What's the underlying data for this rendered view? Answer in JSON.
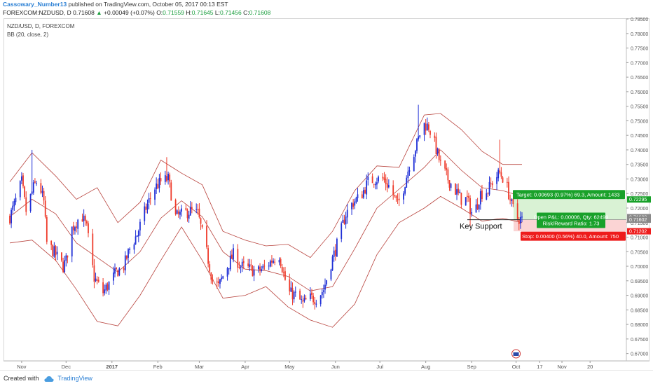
{
  "header": {
    "author": "Cassowary_Number13",
    "published_text": " published on TradingView.com, October 05, 2017 00:13 EST",
    "symbol": "FOREXCOM:NZDUSD, D",
    "last": "0.71608",
    "change_arrow": "▲",
    "change": "+0.00049 (+0.07%)",
    "open_label": "O:",
    "open": "0.71559",
    "high_label": "H:",
    "high": "0.71645",
    "low_label": "L:",
    "low": "0.71456",
    "close_label": "C:",
    "close": "0.71608"
  },
  "legend": {
    "symbol": "NZD/USD, D, FOREXCOM",
    "indicator": "BB (20, close, 2)"
  },
  "footer": {
    "created_with": "Created with",
    "brand": "TradingView"
  },
  "colors": {
    "up": "#1f2fd6",
    "down": "#ee3b2b",
    "band": "#b8433d",
    "profit_fill": "#d9f2d4",
    "loss_fill": "#fbd4d4",
    "target_badge": "#19a12a",
    "stop_badge": "#ee1c1c"
  },
  "chart_data": {
    "type": "candlestick",
    "symbol": "NZD/USD",
    "timeframe": "D",
    "y_axis": {
      "range": [
        0.6675,
        0.7855
      ],
      "tick_labels": [
        "0.78500",
        "0.78000",
        "0.77500",
        "0.77000",
        "0.76500",
        "0.76000",
        "0.75500",
        "0.75000",
        "0.74500",
        "0.74000",
        "0.73500",
        "0.73000",
        "0.72500",
        "0.72000",
        "0.71500",
        "0.71000",
        "0.70500",
        "0.70000",
        "0.69500",
        "0.69000",
        "0.68500",
        "0.68000",
        "0.67500",
        "0.67000"
      ]
    },
    "x_axis": {
      "tick_labels": [
        "Nov",
        "Dec",
        "2017",
        "Feb",
        "Mar",
        "Apr",
        "May",
        "Jun",
        "Jul",
        "Aug",
        "Sep",
        "Oct",
        "17",
        "Nov",
        "20"
      ]
    },
    "price_labels": [
      {
        "text": "0.72295",
        "price": 0.72295,
        "kind": "target"
      },
      {
        "text": "0.71688",
        "price": 0.71688,
        "kind": "neutral"
      },
      {
        "text": "0.71602",
        "price": 0.71602,
        "kind": "neutral"
      },
      {
        "text": "0.71202",
        "price": 0.71202,
        "kind": "stop"
      }
    ],
    "position": {
      "target_text": "Target: 0.00693 (0.97%) 69.3, Amount: 1433",
      "open_pnl_text": "Open P&L: 0.00006, Qty: 62499",
      "risk_reward_text": "Risk/Reward Ratio: 1.73",
      "stop_text": "Stop: 0.00400 (0.56%) 40.0, Amount: 750",
      "entry": 0.71602,
      "target": 0.72295,
      "stop": 0.71202
    },
    "annotation": {
      "text": "Key Support",
      "price": 0.716
    },
    "anchors": [
      [
        "2016-10-24",
        0.717
      ],
      [
        "2016-10-27",
        0.721
      ],
      [
        "2016-11-01",
        0.729
      ],
      [
        "2016-11-04",
        0.719
      ],
      [
        "2016-11-09",
        0.727
      ],
      [
        "2016-11-12",
        0.73
      ],
      [
        "2016-11-16",
        0.722
      ],
      [
        "2016-11-18",
        0.708
      ],
      [
        "2016-11-24",
        0.704
      ],
      [
        "2016-11-29",
        0.7
      ],
      [
        "2016-12-01",
        0.702
      ],
      [
        "2016-12-05",
        0.713
      ],
      [
        "2016-12-09",
        0.716
      ],
      [
        "2016-12-12",
        0.717
      ],
      [
        "2016-12-15",
        0.713
      ],
      [
        "2016-12-20",
        0.696
      ],
      [
        "2016-12-26",
        0.691
      ],
      [
        "2016-12-30",
        0.694
      ],
      [
        "2017-01-04",
        0.698
      ],
      [
        "2017-01-09",
        0.7
      ],
      [
        "2017-01-13",
        0.706
      ],
      [
        "2017-01-18",
        0.711
      ],
      [
        "2017-01-24",
        0.72
      ],
      [
        "2017-01-30",
        0.727
      ],
      [
        "2017-02-03",
        0.729
      ],
      [
        "2017-02-08",
        0.73
      ],
      [
        "2017-02-13",
        0.717
      ],
      [
        "2017-02-18",
        0.718
      ],
      [
        "2017-02-23",
        0.719
      ],
      [
        "2017-02-28",
        0.718
      ],
      [
        "2017-03-05",
        0.707
      ],
      [
        "2017-03-10",
        0.695
      ],
      [
        "2017-03-14",
        0.693
      ],
      [
        "2017-03-19",
        0.699
      ],
      [
        "2017-03-24",
        0.704
      ],
      [
        "2017-03-29",
        0.7
      ],
      [
        "2017-04-04",
        0.699
      ],
      [
        "2017-04-09",
        0.698
      ],
      [
        "2017-04-14",
        0.6995
      ],
      [
        "2017-04-19",
        0.702
      ],
      [
        "2017-04-24",
        0.704
      ],
      [
        "2017-04-30",
        0.691
      ],
      [
        "2017-05-05",
        0.69
      ],
      [
        "2017-05-10",
        0.687
      ],
      [
        "2017-05-14",
        0.689
      ],
      [
        "2017-05-19",
        0.689
      ],
      [
        "2017-05-24",
        0.692
      ],
      [
        "2017-05-29",
        0.701
      ],
      [
        "2017-06-03",
        0.709
      ],
      [
        "2017-06-08",
        0.718
      ],
      [
        "2017-06-13",
        0.722
      ],
      [
        "2017-06-18",
        0.724
      ],
      [
        "2017-06-23",
        0.729
      ],
      [
        "2017-06-28",
        0.73
      ],
      [
        "2017-07-03",
        0.73
      ],
      [
        "2017-07-08",
        0.727
      ],
      [
        "2017-07-13",
        0.721
      ],
      [
        "2017-07-17",
        0.727
      ],
      [
        "2017-07-21",
        0.735
      ],
      [
        "2017-07-26",
        0.742
      ],
      [
        "2017-07-30",
        0.749
      ],
      [
        "2017-08-03",
        0.748
      ],
      [
        "2017-08-07",
        0.742
      ],
      [
        "2017-08-11",
        0.735
      ],
      [
        "2017-08-16",
        0.73
      ],
      [
        "2017-08-21",
        0.726
      ],
      [
        "2017-08-25",
        0.723
      ],
      [
        "2017-08-29",
        0.723
      ],
      [
        "2017-09-02",
        0.717
      ],
      [
        "2017-09-07",
        0.725
      ],
      [
        "2017-09-12",
        0.726
      ],
      [
        "2017-09-16",
        0.73
      ],
      [
        "2017-09-20",
        0.732
      ],
      [
        "2017-09-24",
        0.729
      ],
      [
        "2017-09-28",
        0.721
      ],
      [
        "2017-10-02",
        0.7165
      ],
      [
        "2017-10-05",
        0.716
      ]
    ],
    "bollinger_bands": {
      "period": 20,
      "source": "close",
      "stddev": 2,
      "upper": [
        [
          "2016-10-24",
          0.729
        ],
        [
          "2016-11-08",
          0.739
        ],
        [
          "2016-11-24",
          0.731
        ],
        [
          "2016-12-08",
          0.723
        ],
        [
          "2016-12-22",
          0.727
        ],
        [
          "2017-01-05",
          0.715
        ],
        [
          "2017-01-20",
          0.722
        ],
        [
          "2017-02-03",
          0.7365
        ],
        [
          "2017-02-17",
          0.732
        ],
        [
          "2017-03-03",
          0.728
        ],
        [
          "2017-03-17",
          0.712
        ],
        [
          "2017-04-01",
          0.709
        ],
        [
          "2017-04-15",
          0.707
        ],
        [
          "2017-04-30",
          0.7075
        ],
        [
          "2017-05-15",
          0.703
        ],
        [
          "2017-05-30",
          0.712
        ],
        [
          "2017-06-14",
          0.726
        ],
        [
          "2017-06-29",
          0.7345
        ],
        [
          "2017-07-14",
          0.734
        ],
        [
          "2017-07-31",
          0.752
        ],
        [
          "2017-08-11",
          0.7525
        ],
        [
          "2017-08-25",
          0.747
        ],
        [
          "2017-09-08",
          0.7395
        ],
        [
          "2017-09-22",
          0.735
        ],
        [
          "2017-10-05",
          0.735
        ]
      ],
      "middle": [
        [
          "2016-10-24",
          0.717
        ],
        [
          "2016-11-08",
          0.723
        ],
        [
          "2016-11-24",
          0.718
        ],
        [
          "2016-12-08",
          0.708
        ],
        [
          "2016-12-22",
          0.703
        ],
        [
          "2017-01-05",
          0.698
        ],
        [
          "2017-01-20",
          0.705
        ],
        [
          "2017-02-03",
          0.7165
        ],
        [
          "2017-02-17",
          0.7225
        ],
        [
          "2017-03-03",
          0.717
        ],
        [
          "2017-03-17",
          0.705
        ],
        [
          "2017-04-01",
          0.699
        ],
        [
          "2017-04-15",
          0.6985
        ],
        [
          "2017-04-30",
          0.6965
        ],
        [
          "2017-05-15",
          0.6915
        ],
        [
          "2017-05-30",
          0.693
        ],
        [
          "2017-06-14",
          0.706
        ],
        [
          "2017-06-29",
          0.72
        ],
        [
          "2017-07-14",
          0.7265
        ],
        [
          "2017-07-31",
          0.734
        ],
        [
          "2017-08-11",
          0.74
        ],
        [
          "2017-08-25",
          0.733
        ],
        [
          "2017-09-08",
          0.727
        ],
        [
          "2017-09-22",
          0.726
        ],
        [
          "2017-10-05",
          0.724
        ]
      ],
      "lower": [
        [
          "2016-10-24",
          0.708
        ],
        [
          "2016-11-08",
          0.709
        ],
        [
          "2016-11-24",
          0.702
        ],
        [
          "2016-12-08",
          0.692
        ],
        [
          "2016-12-22",
          0.681
        ],
        [
          "2017-01-05",
          0.6795
        ],
        [
          "2017-01-20",
          0.69
        ],
        [
          "2017-02-03",
          0.702
        ],
        [
          "2017-02-17",
          0.7135
        ],
        [
          "2017-03-03",
          0.702
        ],
        [
          "2017-03-17",
          0.689
        ],
        [
          "2017-04-01",
          0.69
        ],
        [
          "2017-04-15",
          0.693
        ],
        [
          "2017-04-30",
          0.686
        ],
        [
          "2017-05-15",
          0.6815
        ],
        [
          "2017-05-30",
          0.679
        ],
        [
          "2017-06-14",
          0.687
        ],
        [
          "2017-06-29",
          0.704
        ],
        [
          "2017-07-14",
          0.715
        ],
        [
          "2017-07-31",
          0.72
        ],
        [
          "2017-08-11",
          0.724
        ],
        [
          "2017-08-25",
          0.72
        ],
        [
          "2017-09-08",
          0.7155
        ],
        [
          "2017-09-22",
          0.7165
        ],
        [
          "2017-10-05",
          0.715
        ]
      ]
    },
    "grid": false,
    "legend_position": "top-left"
  }
}
